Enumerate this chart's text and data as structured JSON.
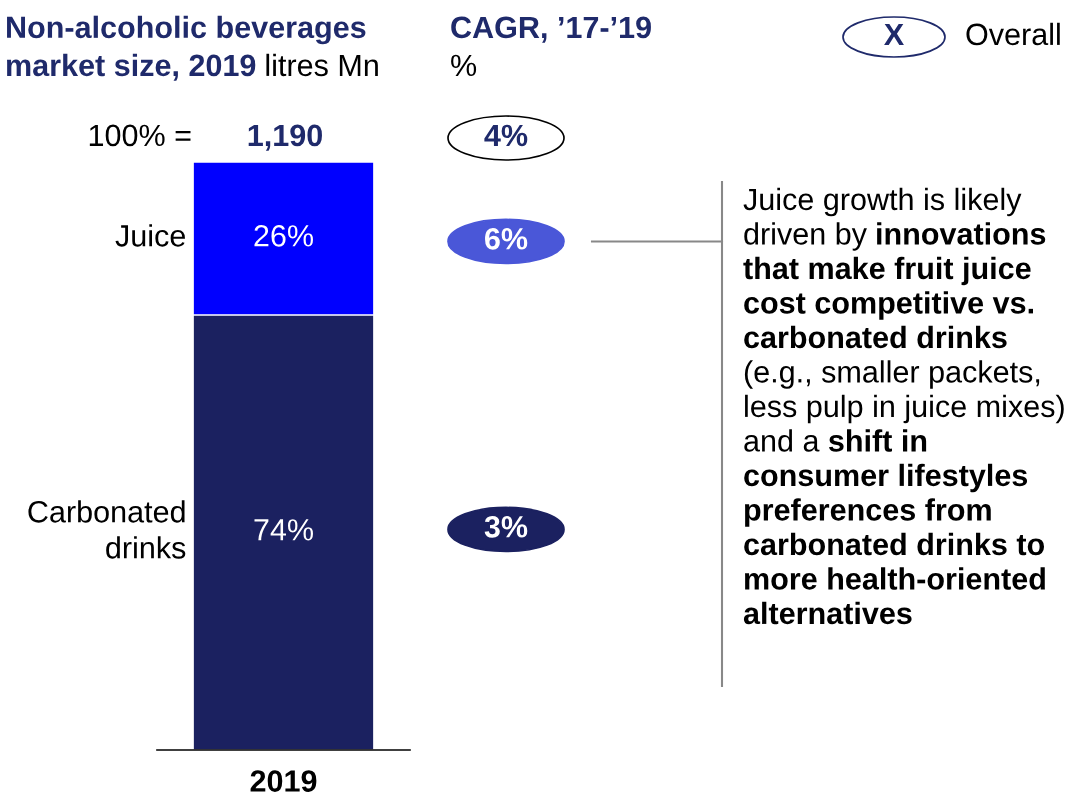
{
  "chart_data": {
    "type": "bar",
    "stacked": true,
    "title": "Non-alcoholic beverages market size, 2019",
    "subtitle": "litres Mn",
    "categories": [
      "2019"
    ],
    "series": [
      {
        "name": "Carbonated drinks",
        "color": "#1b2160",
        "values": [
          74
        ],
        "value_labels": [
          "74%"
        ]
      },
      {
        "name": "Juice",
        "color": "#0000ff",
        "values": [
          26
        ],
        "value_labels": [
          "26%"
        ]
      }
    ],
    "annotations": [
      "100% =",
      "1,190",
      "CAGR, ’17-’19",
      "%",
      "4%",
      "6%",
      "3%",
      "X",
      "Overall",
      "Juice growth is likely driven by",
      "innovations that make fruit juice cost competitive vs. carbonated drinks",
      "(e.g., smaller packets, less pulp in juice mixes) and a",
      "shift in consumer lifestyles preferences from carbonated drinks to more health-oriented alternatives"
    ]
  }
}
